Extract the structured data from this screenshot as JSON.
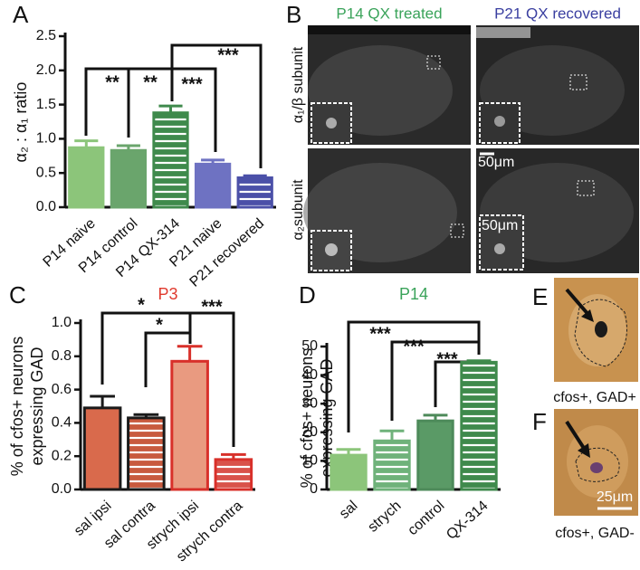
{
  "panels": {
    "a": "A",
    "b": "B",
    "c": "C",
    "d": "D",
    "e": "E",
    "f": "F"
  },
  "images": {
    "b_col_titles": [
      "P14 QX treated",
      "P21 QX recovered"
    ],
    "b_row_labels": [
      "α₁/β subunit",
      "α₂subunit"
    ],
    "b_scalebars": [
      "50μm",
      "50μm"
    ],
    "e_caption": "cfos+, GAD+",
    "f_caption": "cfos+, GAD-",
    "f_scalebar": "25μm"
  },
  "chart_data": [
    {
      "type": "bar",
      "ylabel": "α₂ : α₁ ratio",
      "categories": [
        "P14 naive",
        "P14 control",
        "P14 QX-314",
        "P21 naive",
        "P21 recovered"
      ],
      "values": [
        0.87,
        0.83,
        1.38,
        0.63,
        0.43
      ],
      "errors": [
        0.1,
        0.07,
        0.1,
        0.06,
        0.03
      ],
      "colors": [
        "#8cc57a",
        "#6aa56c",
        "#3f8a4c",
        "#6e72c2",
        "#4b50a8"
      ],
      "edgecolors": [
        "#8cc57a",
        "#6aa56c",
        "#3f8a4c",
        "#6e72c2",
        "#4b50a8"
      ],
      "hatch": [
        false,
        false,
        true,
        false,
        true
      ],
      "ylim": [
        0,
        2.5
      ],
      "yticks": [
        {
          "value": 0,
          "label": "0.0"
        },
        0.5,
        {
          "value": 1,
          "label": "1.0"
        },
        1.5,
        {
          "value": 2,
          "label": "2.0"
        },
        2.5
      ],
      "annotations": [
        "**",
        "**",
        "***",
        "***"
      ]
    },
    {
      "type": "bar",
      "title": "P3",
      "title_color": "#e03a2e",
      "ylabel": [
        "% of cfos+ neurons",
        "expressing GAD"
      ],
      "categories": [
        "sal ipsi",
        "sal contra",
        "strych ipsi",
        "strych contra"
      ],
      "values": [
        0.49,
        0.43,
        0.77,
        0.18
      ],
      "errors": [
        0.07,
        0.02,
        0.09,
        0.03
      ],
      "colors": [
        "#d96a4c",
        "#c85a3e",
        "#e99a80",
        "#d9524a"
      ],
      "edgecolors": [
        "#1a1a1a",
        "#1a1a1a",
        "#d8302a",
        "#d8302a"
      ],
      "hatch": [
        false,
        true,
        false,
        true
      ],
      "ylim": [
        0,
        1
      ],
      "yticks": [
        {
          "value": 0,
          "label": "0.0"
        },
        0.2,
        0.4,
        0.6,
        0.8,
        {
          "value": 1,
          "label": "1.0"
        }
      ],
      "annotations": [
        "*",
        "*",
        "***"
      ]
    },
    {
      "type": "bar",
      "title": "P14",
      "title_color": "#3aa35a",
      "ylabel": [
        "% of cfos+ neurons",
        "expressing GAD"
      ],
      "categories": [
        "sal",
        "strych",
        "control",
        "QX-314"
      ],
      "values": [
        12,
        17,
        24,
        44.5
      ],
      "errors": [
        2,
        3.5,
        2,
        0.5
      ],
      "colors": [
        "#8cc57a",
        "#6fb27a",
        "#5a9a66",
        "#3f8a4c"
      ],
      "edgecolors": [
        "#8cc57a",
        "#6fb27a",
        "#4d8a5a",
        "#3f8a4c"
      ],
      "hatch": [
        false,
        true,
        false,
        true
      ],
      "ylim": [
        0,
        50
      ],
      "yticks": [
        0,
        10,
        20,
        30,
        40,
        50
      ],
      "annotations": [
        "***",
        "***",
        "***"
      ]
    }
  ]
}
